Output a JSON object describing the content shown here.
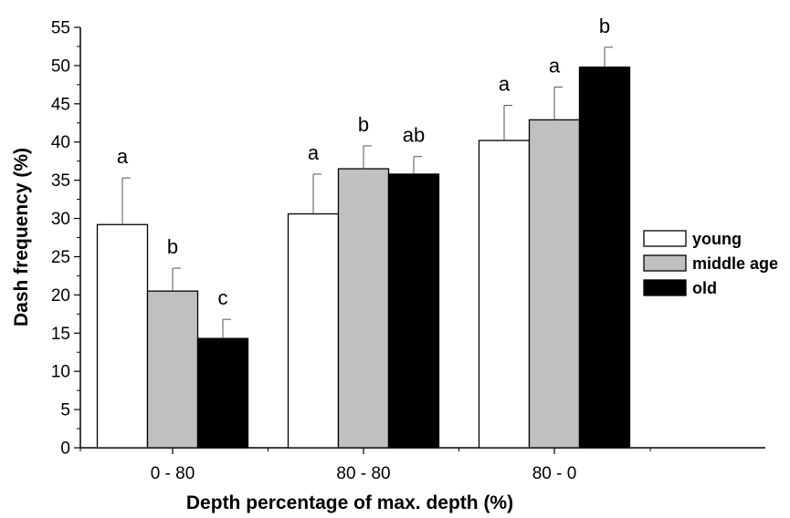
{
  "chart_data": {
    "type": "bar",
    "xlabel": "Depth percentage of max. depth (%)",
    "ylabel": "Dash frequency (%)",
    "ylim": [
      0,
      55
    ],
    "yticks": [
      "0",
      "5",
      "10",
      "15",
      "20",
      "25",
      "30",
      "35",
      "40",
      "45",
      "50",
      "55"
    ],
    "categories": [
      "0 - 80",
      "80 - 80",
      "80 - 0"
    ],
    "series": [
      {
        "name": "young",
        "color": "#ffffff",
        "values": [
          29.2,
          30.6,
          40.2
        ],
        "errors": [
          6.1,
          5.2,
          4.6
        ],
        "labels": [
          "a",
          "a",
          "a"
        ]
      },
      {
        "name": "middle age",
        "color": "#c0c0c0",
        "values": [
          20.5,
          36.5,
          42.9
        ],
        "errors": [
          3.0,
          3.0,
          4.3
        ],
        "labels": [
          "b",
          "b",
          "a"
        ]
      },
      {
        "name": "old",
        "color": "#000000",
        "values": [
          14.3,
          35.8,
          49.8
        ],
        "errors": [
          2.5,
          2.3,
          2.6
        ],
        "labels": [
          "c",
          "ab",
          "b"
        ]
      }
    ],
    "grid": false,
    "legend_position": "right"
  }
}
